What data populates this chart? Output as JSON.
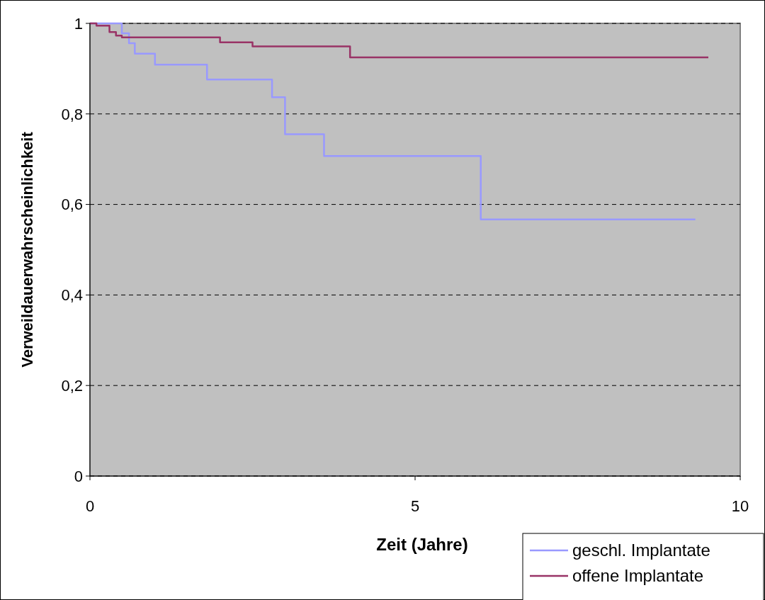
{
  "chart_data": {
    "type": "step",
    "xlabel": "Zeit (Jahre)",
    "ylabel": "Verweildauerwahrscheinlichkeit",
    "xlim": [
      0,
      10
    ],
    "xticks": [
      0,
      5,
      10
    ],
    "ylim": [
      0,
      1
    ],
    "yticks": [
      0,
      {
        "value": 0.2,
        "label": "0,2"
      },
      {
        "value": 0.4,
        "label": "0,4"
      },
      {
        "value": 0.6,
        "label": "0,6"
      },
      {
        "value": 0.8,
        "label": "0,8"
      },
      1
    ],
    "grid": "y",
    "line_style": "solid",
    "legend": "bottom right",
    "series": [
      {
        "name": "geschl. Implantate",
        "color": "#9999ff",
        "x": [
          0,
          0.49,
          0.6,
          0.69,
          1.0,
          1.8,
          2.8,
          3.0,
          3.6,
          6.01,
          9.31
        ],
        "values": [
          1,
          0.978,
          0.956,
          0.933,
          0.909,
          0.876,
          0.837,
          0.755,
          0.707,
          0.567,
          0.567
        ]
      },
      {
        "name": "offene Implantate",
        "color": "#993366",
        "x": [
          0,
          0.1,
          0.3,
          0.4,
          0.49,
          2.0,
          2.5,
          4.0,
          9.51
        ],
        "values": [
          1,
          0.995,
          0.981,
          0.973,
          0.969,
          0.958,
          0.949,
          0.925,
          0.925
        ]
      }
    ]
  }
}
